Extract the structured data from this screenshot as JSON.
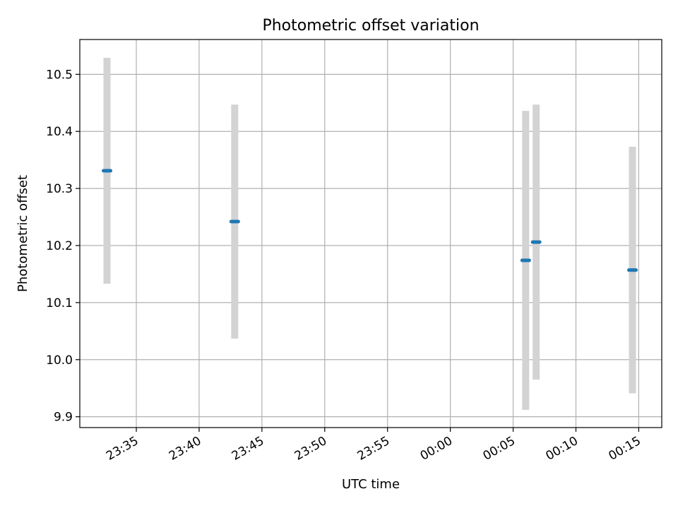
{
  "chart_data": {
    "type": "scatter",
    "title": "Photometric offset variation",
    "xlabel": "UTC time",
    "ylabel": "Photometric offset",
    "x_ticks": [
      "23:35",
      "23:40",
      "23:45",
      "23:50",
      "23:55",
      "00:00",
      "00:05",
      "00:10",
      "00:15"
    ],
    "y_ticks": [
      "9.9",
      "10.0",
      "10.1",
      "10.2",
      "10.3",
      "10.4",
      "10.5"
    ],
    "xlim": [
      "23:30:30",
      "00:16:50"
    ],
    "ylim": [
      9.881,
      10.561
    ],
    "grid": true,
    "colors": {
      "marker": "#1f77b4",
      "errorbar": "#d3d3d3",
      "grid": "#b0b0b0"
    },
    "points": [
      {
        "time": "23:32:40",
        "value": 10.331,
        "err": 0.198
      },
      {
        "time": "23:42:50",
        "value": 10.242,
        "err": 0.205
      },
      {
        "time": "00:06:00",
        "value": 10.174,
        "err": 0.262
      },
      {
        "time": "00:06:50",
        "value": 10.206,
        "err": 0.241
      },
      {
        "time": "00:14:30",
        "value": 10.157,
        "err": 0.216
      }
    ]
  }
}
